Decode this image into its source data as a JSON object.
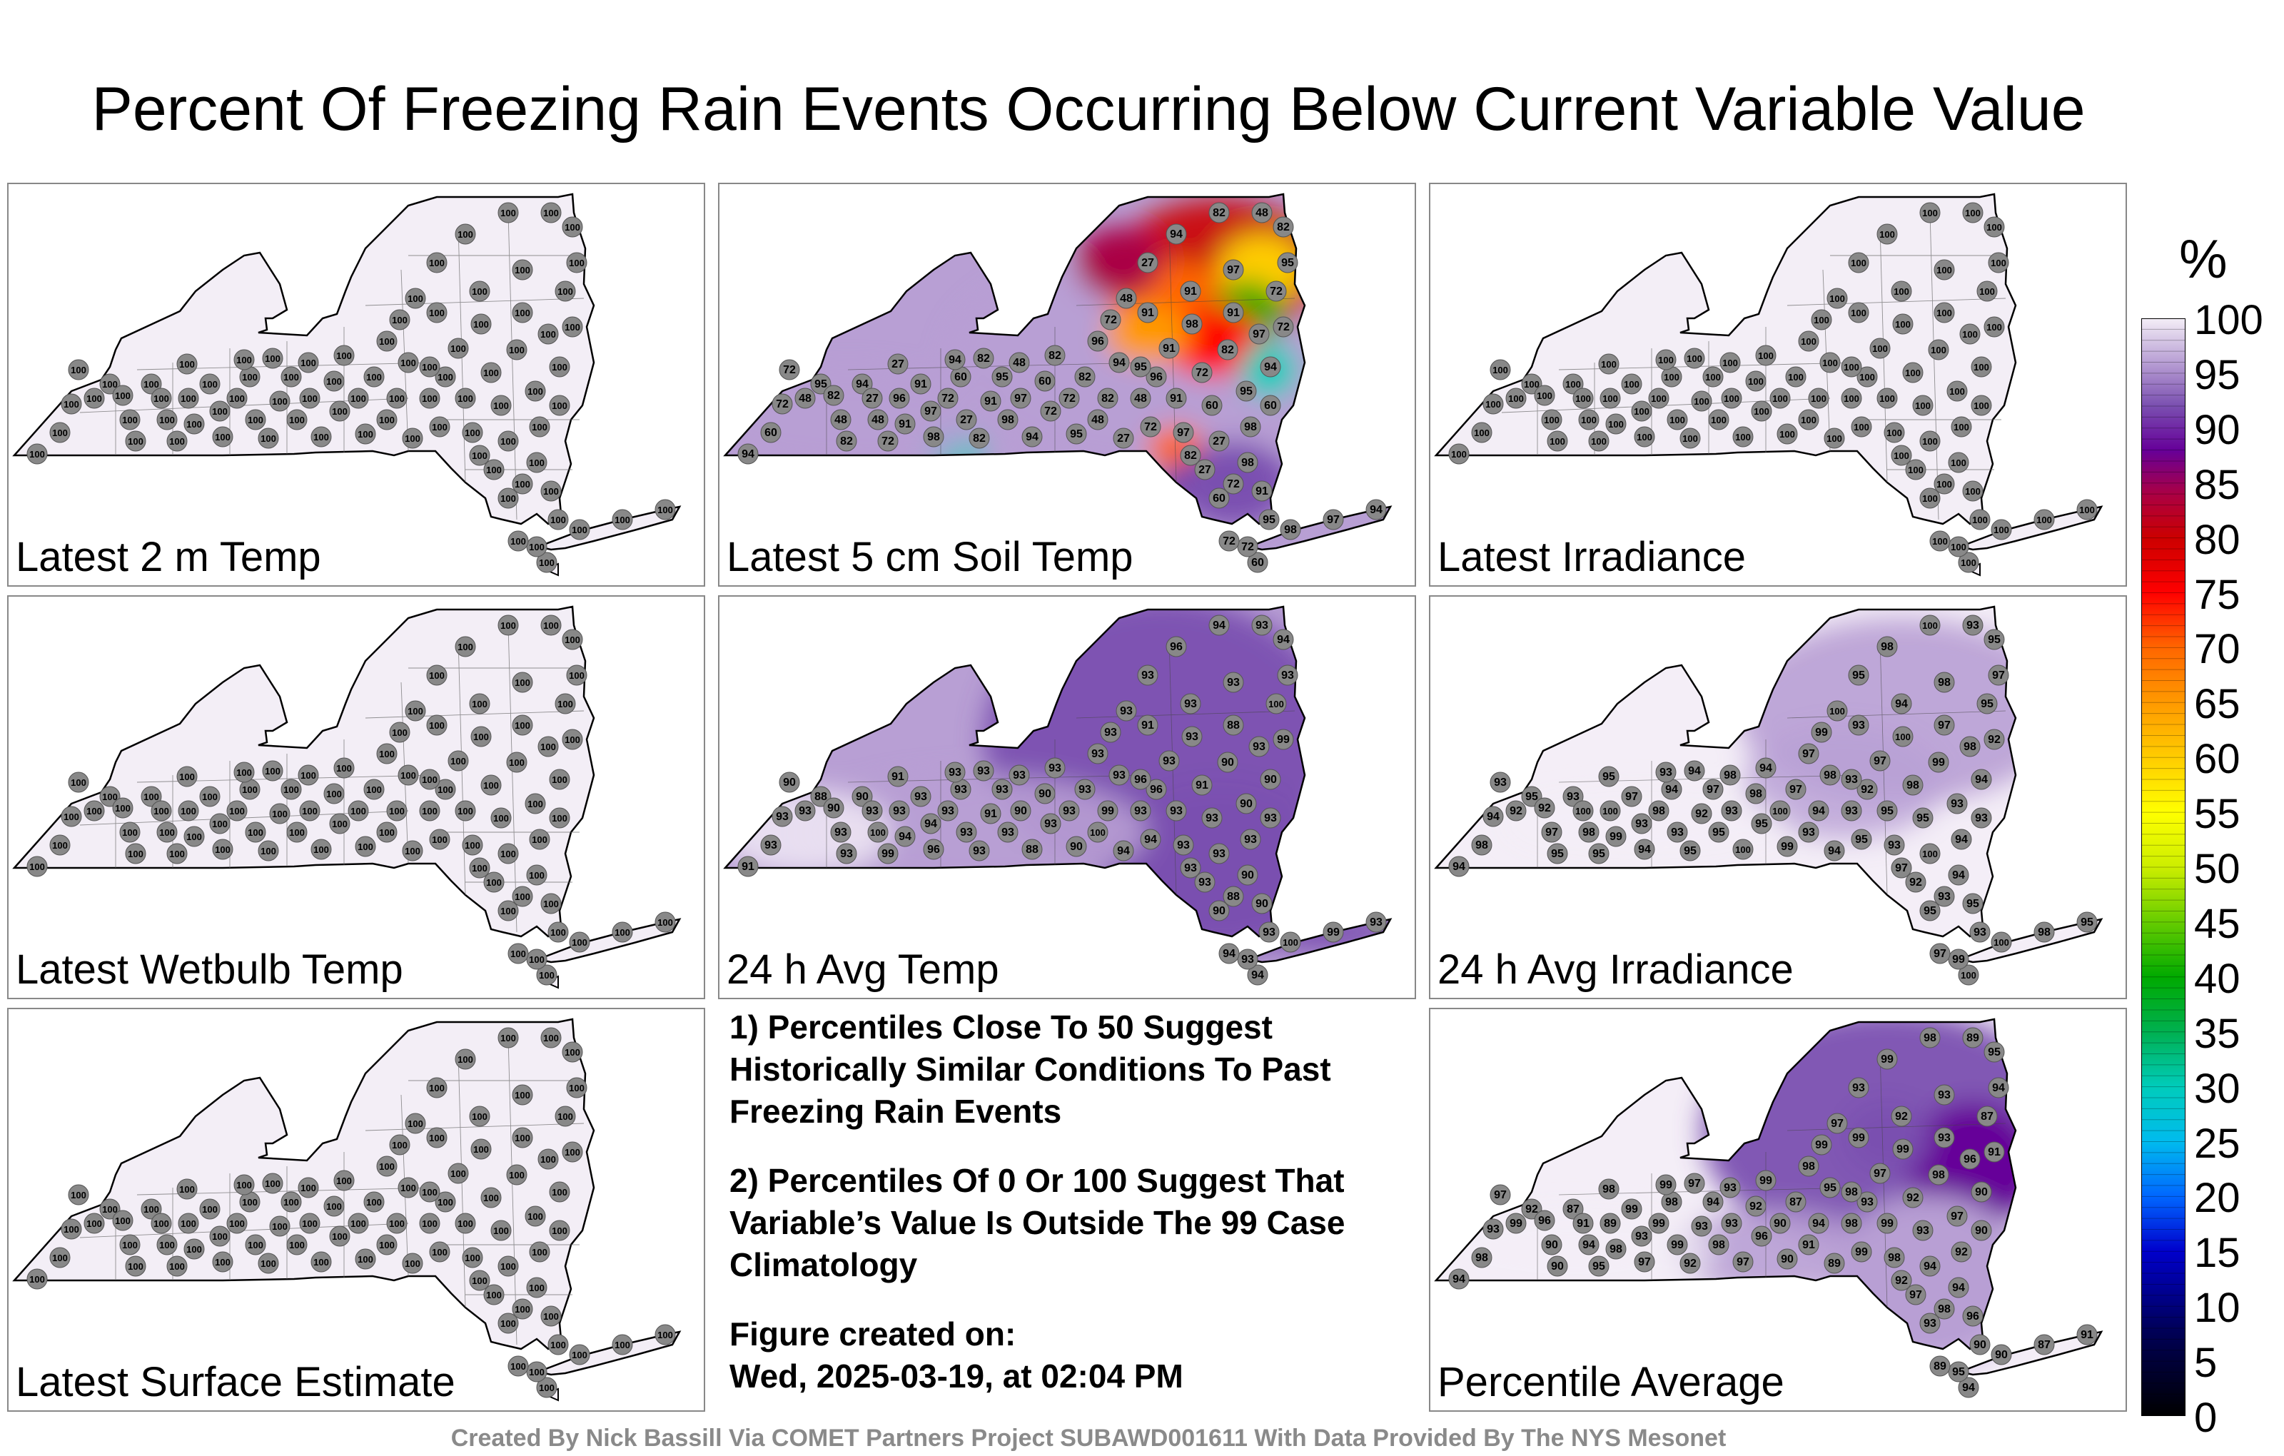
{
  "title": "Percent Of Freezing Rain Events Occurring Below Current Variable Value",
  "colors": {
    "panel_border": "#888888",
    "state_outline": "#000000",
    "station_dot": "#888888",
    "uniform_fill": "#f3eef6",
    "footer_text": "#8a8a8a"
  },
  "panels": [
    {
      "id": "temp2m",
      "label": "Latest 2 m Temp",
      "mode": "uniform",
      "value_summary": "100"
    },
    {
      "id": "soil5cm",
      "label": "Latest 5 cm Soil Temp",
      "mode": "soil",
      "sample_values": [
        "94",
        "60",
        "72",
        "72",
        "95",
        "82",
        "48",
        "82",
        "94",
        "27",
        "48",
        "72",
        "96",
        "91",
        "91",
        "97",
        "98",
        "72",
        "60",
        "27",
        "82",
        "91",
        "95",
        "98",
        "97"
      ]
    },
    {
      "id": "irradiance",
      "label": "Latest Irradiance",
      "mode": "uniform",
      "value_summary": "100"
    },
    {
      "id": "wetbulb",
      "label": "Latest Wetbulb Temp",
      "mode": "uniform",
      "value_summary": "100"
    },
    {
      "id": "avgtemp24",
      "label": "24 h Avg Temp",
      "mode": "avg",
      "sample_values": [
        "91",
        "93",
        "93",
        "90",
        "88",
        "90",
        "93",
        "93",
        "90",
        "93",
        "100",
        "99",
        "93",
        "94",
        "93",
        "94",
        "96",
        "93",
        "93",
        "93",
        "93"
      ]
    },
    {
      "id": "avgirr24",
      "label": "24 h Avg Irradiance",
      "mode": "irr",
      "sample_values": [
        "94",
        "98",
        "94",
        "93",
        "95",
        "92",
        "97",
        "95",
        "93",
        "100",
        "98",
        "95",
        "100",
        "99",
        "97",
        "93"
      ]
    },
    {
      "id": "surface",
      "label": "Latest Surface Estimate",
      "mode": "uniform",
      "value_summary": "100"
    },
    {
      "id": "average",
      "label": "Percentile Average",
      "mode": "pavg",
      "sample_values": [
        "94",
        "98",
        "93",
        "97",
        "92",
        "96",
        "90",
        "90",
        "87",
        "91",
        "94",
        "95",
        "89",
        "98",
        "99",
        "93",
        "97",
        "99",
        "98",
        "99",
        "92",
        "93"
      ]
    }
  ],
  "notes": [
    "1) Percentiles Close To 50 Suggest Historically Similar Conditions To Past Freezing Rain Events",
    "2) Percentiles Of 0 Or 100 Suggest That Variable’s Value Is Outside The 99 Case Climatology"
  ],
  "created": {
    "line1": "Figure created on:",
    "line2": "Wed, 2025-03-19, at 02:04 PM"
  },
  "footer": "Created By Nick Bassill Via COMET Partners Project SUBAWD001611 With Data Provided By The NYS Mesonet",
  "colorbar": {
    "unit": "%",
    "ticks": [
      "100",
      "95",
      "90",
      "85",
      "80",
      "75",
      "70",
      "65",
      "60",
      "55",
      "50",
      "45",
      "40",
      "35",
      "30",
      "25",
      "20",
      "15",
      "10",
      "5",
      "0"
    ],
    "min": 0,
    "max": 100,
    "stops": [
      {
        "v": 0,
        "c": "#000000"
      },
      {
        "v": 8,
        "c": "#00005a"
      },
      {
        "v": 15,
        "c": "#0000cc"
      },
      {
        "v": 20,
        "c": "#0066ff"
      },
      {
        "v": 25,
        "c": "#00bbee"
      },
      {
        "v": 30,
        "c": "#00ccbb"
      },
      {
        "v": 35,
        "c": "#00b050"
      },
      {
        "v": 40,
        "c": "#00aa00"
      },
      {
        "v": 45,
        "c": "#66cc00"
      },
      {
        "v": 50,
        "c": "#ccee00"
      },
      {
        "v": 55,
        "c": "#ffff00"
      },
      {
        "v": 60,
        "c": "#ffcc00"
      },
      {
        "v": 65,
        "c": "#ff9900"
      },
      {
        "v": 70,
        "c": "#ff6600"
      },
      {
        "v": 75,
        "c": "#ff0000"
      },
      {
        "v": 80,
        "c": "#cc0000"
      },
      {
        "v": 84,
        "c": "#aa0044"
      },
      {
        "v": 88,
        "c": "#660099"
      },
      {
        "v": 92,
        "c": "#7a4fb0"
      },
      {
        "v": 96,
        "c": "#b89fd4"
      },
      {
        "v": 100,
        "c": "#f4eef7"
      }
    ]
  }
}
